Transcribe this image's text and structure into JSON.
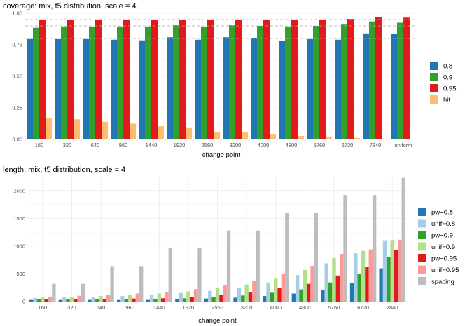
{
  "chart_data": [
    {
      "type": "bar",
      "title": "coverage: mix, t5 distribution, scale = 4",
      "xlabel": "change point",
      "ylabel": "",
      "ylim": [
        0,
        1.0
      ],
      "yticks": [
        "0.00",
        "0.25",
        "0.50",
        "0.75",
        "1.00"
      ],
      "reference_lines": [
        0.8,
        0.9,
        0.95
      ],
      "categories": [
        "160",
        "320",
        "640",
        "960",
        "1440",
        "1920",
        "2560",
        "3200",
        "4000",
        "4800",
        "5760",
        "6720",
        "7840",
        "uniform"
      ],
      "legend_position": "right",
      "series": [
        {
          "name": "0.8",
          "color": "#1f78b4",
          "values": [
            0.795,
            0.795,
            0.795,
            0.79,
            0.785,
            0.81,
            0.79,
            0.81,
            0.8,
            0.78,
            0.795,
            0.79,
            0.84,
            0.835
          ]
        },
        {
          "name": "0.9",
          "color": "#33a02c",
          "values": [
            0.885,
            0.895,
            0.895,
            0.895,
            0.895,
            0.905,
            0.895,
            0.905,
            0.9,
            0.895,
            0.9,
            0.91,
            0.935,
            0.925
          ]
        },
        {
          "name": "0.95",
          "color": "#e31a1c",
          "values": [
            0.945,
            0.945,
            0.945,
            0.945,
            0.945,
            0.95,
            0.945,
            0.95,
            0.95,
            0.945,
            0.95,
            0.955,
            0.97,
            0.965
          ]
        },
        {
          "name": "hit",
          "color": "#fdbf6f",
          "values": [
            0.168,
            0.16,
            0.14,
            0.125,
            0.105,
            0.09,
            0.055,
            0.06,
            0.042,
            0.028,
            0.018,
            0.012,
            0.006,
            0
          ]
        }
      ]
    },
    {
      "type": "bar",
      "title": "length: mix, t5 distribution, scale = 4",
      "xlabel": "change point",
      "ylabel": "",
      "ylim": [
        0,
        2250
      ],
      "yticks": [
        "0",
        "500",
        "1000",
        "1500",
        "2000"
      ],
      "categories": [
        "160",
        "320",
        "640",
        "960",
        "1440",
        "1920",
        "2560",
        "3200",
        "4000",
        "4800",
        "5760",
        "6720",
        "7840"
      ],
      "legend_position": "right",
      "series": [
        {
          "name": "pw−0.8",
          "color": "#1f78b4",
          "values": [
            30,
            30,
            30,
            30,
            30,
            40,
            55,
            70,
            100,
            145,
            215,
            330,
            600
          ]
        },
        {
          "name": "unif−0.8",
          "color": "#a6cee3",
          "values": [
            65,
            75,
            85,
            100,
            115,
            155,
            195,
            255,
            345,
            480,
            690,
            870,
            1105
          ]
        },
        {
          "name": "pw−0.9",
          "color": "#33a02c",
          "values": [
            40,
            40,
            40,
            40,
            45,
            60,
            85,
            110,
            160,
            220,
            345,
            500,
            800
          ]
        },
        {
          "name": "unif−0.9",
          "color": "#b2df8a",
          "values": [
            75,
            85,
            100,
            115,
            145,
            185,
            240,
            310,
            415,
            570,
            785,
            915,
            1110
          ]
        },
        {
          "name": "pw−0.95",
          "color": "#e31a1c",
          "values": [
            50,
            50,
            50,
            55,
            60,
            85,
            120,
            165,
            240,
            320,
            470,
            630,
            935
          ]
        },
        {
          "name": "unif−0.95",
          "color": "#fb9a99",
          "values": [
            90,
            105,
            120,
            145,
            175,
            225,
            290,
            375,
            495,
            645,
            860,
            940,
            1115
          ]
        },
        {
          "name": "spacing",
          "color": "#bdbdbd",
          "values": [
            320,
            320,
            640,
            640,
            960,
            960,
            1280,
            1280,
            1600,
            1600,
            1920,
            1920,
            2240
          ]
        }
      ]
    }
  ]
}
